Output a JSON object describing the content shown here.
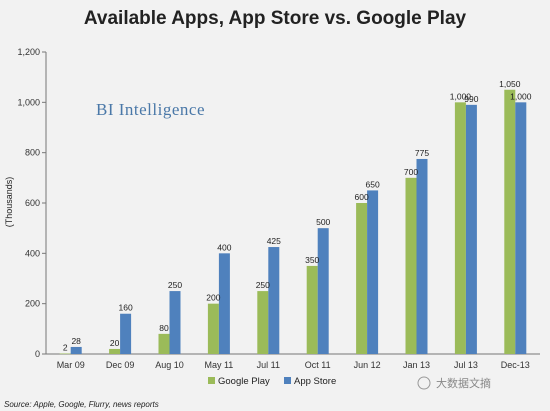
{
  "chart_data": {
    "type": "bar",
    "title": "Available Apps, App Store vs. Google Play",
    "ylabel": "(Thousands)",
    "ylim": [
      0,
      1200
    ],
    "yticks": [
      "0",
      "200",
      "400",
      "600",
      "800",
      "1,000",
      "1,200"
    ],
    "categories": [
      "Mar 09",
      "Dec 09",
      "Aug 10",
      "May 11",
      "Jul 11",
      "Oct 11",
      "Jun 12",
      "Jan 13",
      "Jul 13",
      "Dec-13"
    ],
    "series": [
      {
        "name": "Google Play",
        "color": "#9bbb59",
        "values": [
          2,
          20,
          80,
          200,
          250,
          350,
          600,
          700,
          1000,
          1050
        ],
        "labels": [
          "2",
          "20",
          "80",
          "200",
          "250",
          "350",
          "600",
          "700",
          "1,000",
          "1,050"
        ]
      },
      {
        "name": "App Store",
        "color": "#4f81bd",
        "values": [
          28,
          160,
          250,
          400,
          425,
          500,
          650,
          775,
          990,
          1000
        ],
        "labels": [
          "28",
          "160",
          "250",
          "400",
          "425",
          "500",
          "650",
          "775",
          "990",
          "1,000"
        ]
      }
    ],
    "grid": false,
    "legend_position": "bottom"
  },
  "brand_text": "BI Intelligence",
  "source_text": "Source: Apple, Google, Flurry, news reports",
  "watermark_text": "大数据文摘"
}
